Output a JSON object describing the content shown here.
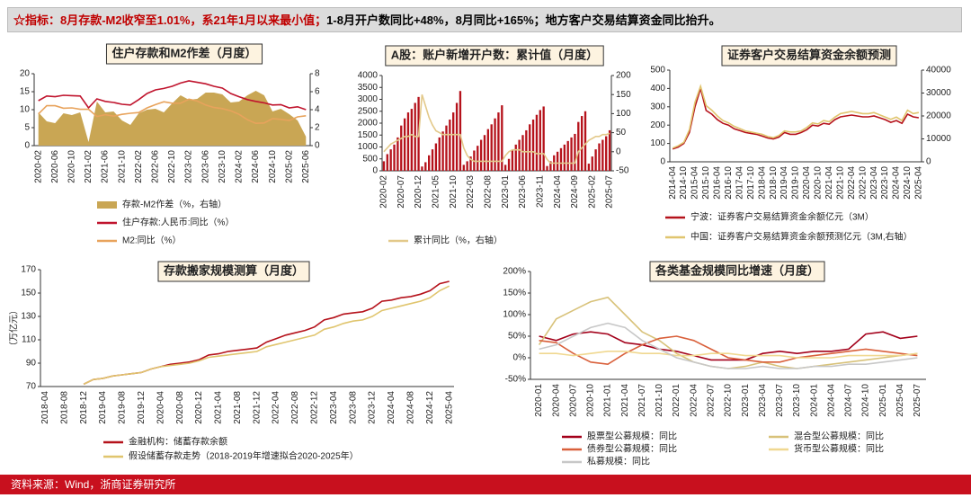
{
  "header": {
    "highlight": "☆指标：8月存款-M2收窄至1.01%，系21年1月以来最小值；",
    "rest": "1-8月开户数同比+48%，8月同比+165%；地方客户交易结算资金同比抬升。"
  },
  "footer": "资料来源：Wind，浙商证券研究所",
  "chart_data": [
    {
      "type": "combo",
      "title": "住户存款和M2作差（月度）",
      "categories": [
        "2020-02",
        null,
        "2020-06",
        null,
        "2020-10",
        null,
        "2021-02",
        null,
        "2021-06",
        null,
        "2021-10",
        null,
        "2022-02",
        null,
        "2022-06",
        null,
        "2022-10",
        null,
        "2023-02",
        null,
        "2023-06",
        null,
        "2023-10",
        null,
        "2024-02",
        null,
        "2024-06",
        null,
        "2024-10",
        null,
        "2025-02",
        null,
        "2025-06"
      ],
      "ylim": [
        0,
        20
      ],
      "yticks": [
        0,
        5,
        10,
        15,
        20
      ],
      "y2lim": [
        0,
        8
      ],
      "y2ticks": [
        0,
        2,
        4,
        6,
        8
      ],
      "series": [
        {
          "name": "存款-M2作差（%，右轴）",
          "type": "area",
          "axis": "y2",
          "color": "#c9a654",
          "values": [
            3.7,
            2.7,
            2.5,
            3.6,
            3.4,
            3.7,
            0.4,
            4.9,
            3.7,
            3.8,
            2.8,
            2.3,
            3.6,
            4,
            4.1,
            3.7,
            4.7,
            5.6,
            5.1,
            5.2,
            5.9,
            5.9,
            5.7,
            4.8,
            4.9,
            5.6,
            6.1,
            5.6,
            3.8,
            4.1,
            3.5,
            2.8,
            1.0
          ]
        },
        {
          "name": "住户存款:人民币:同比（%）",
          "type": "line",
          "color": "#c0142d",
          "values": [
            12.5,
            13.8,
            13.6,
            14,
            13.9,
            13.8,
            10.5,
            13,
            12.3,
            12,
            11.5,
            11.3,
            12.8,
            14.5,
            15.5,
            15.9,
            16.5,
            17.4,
            18,
            17.6,
            17.2,
            16.5,
            16,
            14.5,
            13.6,
            12.8,
            12.3,
            11.9,
            11.3,
            11.4,
            10.5,
            10.8,
            10
          ]
        },
        {
          "name": "M2:同比（%）",
          "type": "line",
          "color": "#e8a35c",
          "values": [
            8.8,
            11.1,
            11.1,
            10.4,
            10.5,
            10.1,
            10.1,
            8.1,
            8.6,
            8.2,
            8.7,
            9,
            9.2,
            10.5,
            11.4,
            12.2,
            11.8,
            11.8,
            12.9,
            12.4,
            11.3,
            10.6,
            10.3,
            9.7,
            8.7,
            7.2,
            6.2,
            6.3,
            7.5,
            7.3,
            7,
            8,
            8.3
          ]
        }
      ]
    },
    {
      "type": "combo",
      "title": "A股：账户新增开户数：累计值（月度）",
      "categories": [
        "2020-02",
        null,
        null,
        null,
        null,
        "2020-07",
        null,
        null,
        null,
        null,
        "2020-12",
        null,
        null,
        null,
        null,
        "2021-05",
        null,
        null,
        null,
        null,
        "2021-10",
        null,
        null,
        null,
        null,
        "2022-03",
        null,
        null,
        null,
        null,
        "2022-08",
        null,
        null,
        null,
        null,
        "2023-01",
        null,
        null,
        null,
        null,
        "2023-06",
        null,
        null,
        null,
        null,
        "2023-11",
        null,
        null,
        null,
        null,
        "2024-04",
        null,
        null,
        null,
        null,
        "2024-09",
        null,
        null,
        null,
        null,
        "2025-02",
        null,
        null,
        null,
        null,
        "2025-07"
      ],
      "ylim": [
        0,
        4000
      ],
      "yticks": [
        0,
        500,
        1000,
        1500,
        2000,
        2500,
        3000,
        3500,
        4000
      ],
      "y2lim": [
        -50,
        200
      ],
      "y2ticks": [
        -50,
        0,
        50,
        100,
        150,
        200
      ],
      "series": [
        {
          "name": "A股：账户新增开户数：累计值（月，户）",
          "type": "bar",
          "color": "#b5121b",
          "values": [
            400,
            700,
            900,
            1100,
            1400,
            1900,
            2200,
            2450,
            2600,
            2850,
            3100,
            180,
            360,
            650,
            900,
            1150,
            1400,
            1650,
            1900,
            2150,
            2450,
            2850,
            3350,
            250,
            400,
            600,
            850,
            1050,
            1300,
            1500,
            1750,
            1950,
            2200,
            2450,
            2750,
            250,
            500,
            850,
            1100,
            1300,
            1500,
            1700,
            1950,
            2150,
            2350,
            2550,
            2700,
            200,
            400,
            650,
            800,
            950,
            1100,
            1250,
            1400,
            1550,
            2050,
            2300,
            2500,
            300,
            600,
            900,
            1150,
            1300,
            1450,
            1700
          ]
        },
        {
          "name": "累计同比（%，右轴）",
          "type": "line",
          "axis": "y2",
          "color": "#e3c98a",
          "values": [
            0,
            10,
            20,
            25,
            30,
            35,
            40,
            40,
            45,
            40,
            40,
            150,
            120,
            90,
            70,
            55,
            50,
            45,
            45,
            45,
            45,
            45,
            45,
            10,
            -10,
            -20,
            -25,
            -25,
            -25,
            -25,
            -25,
            -25,
            -25,
            -25,
            -25,
            -10,
            0,
            5,
            5,
            5,
            0,
            0,
            0,
            0,
            -5,
            -5,
            -5,
            -20,
            -30,
            -30,
            -30,
            -30,
            -30,
            -30,
            -30,
            -30,
            0,
            10,
            20,
            30,
            35,
            40,
            40,
            45,
            45,
            48
          ]
        }
      ]
    },
    {
      "type": "combo",
      "title": "证券客户交易结算资金余额预测",
      "categories": [
        "2014-04",
        null,
        "2014-10",
        null,
        "2015-04",
        null,
        "2015-10",
        null,
        "2016-04",
        null,
        "2016-10",
        null,
        "2017-04",
        null,
        "2017-10",
        null,
        "2018-04",
        null,
        "2018-10",
        null,
        "2019-04",
        null,
        "2019-10",
        null,
        "2020-04",
        null,
        "2020-10",
        null,
        "2021-04",
        null,
        "2021-10",
        null,
        "2022-04",
        null,
        "2022-10",
        null,
        "2023-04",
        null,
        "2023-10",
        null,
        "2024-04",
        null,
        "2024-10",
        null,
        "2025-04"
      ],
      "ylim": [
        0,
        500
      ],
      "yticks": [
        0,
        100,
        200,
        300,
        400,
        500
      ],
      "y2lim": [
        0,
        40000
      ],
      "y2ticks": [
        0,
        10000,
        20000,
        30000,
        40000
      ],
      "series": [
        {
          "name": "宁波：证券客户交易结算资金余额亿元（3M）",
          "type": "line",
          "color": "#b5121b",
          "values": [
            70,
            80,
            100,
            160,
            300,
            400,
            280,
            260,
            230,
            210,
            200,
            180,
            170,
            160,
            155,
            150,
            140,
            130,
            125,
            135,
            160,
            150,
            150,
            160,
            175,
            200,
            195,
            210,
            205,
            230,
            245,
            250,
            255,
            250,
            245,
            245,
            250,
            240,
            230,
            215,
            225,
            210,
            260,
            245,
            240
          ]
        },
        {
          "name": "中国：证券客户交易结算资金余额预测亿元（3M,右轴）",
          "type": "line",
          "axis": "y2",
          "color": "#e0c56e",
          "values": [
            6000,
            7000,
            8500,
            14000,
            26000,
            33000,
            24500,
            22500,
            20000,
            18000,
            17000,
            15500,
            14500,
            13500,
            13000,
            12500,
            12000,
            11000,
            10500,
            11500,
            13500,
            13000,
            13000,
            13500,
            15000,
            17000,
            16500,
            18000,
            17500,
            19500,
            21000,
            21500,
            22000,
            21500,
            21000,
            21000,
            21500,
            20500,
            19500,
            18500,
            19500,
            18000,
            22500,
            21000,
            21500
          ]
        }
      ]
    },
    {
      "type": "line",
      "title": "存款搬家规模测算（月度）",
      "ylabel": "（万亿元）",
      "categories": [
        "2018-04",
        null,
        "2018-08",
        null,
        "2018-12",
        null,
        "2019-04",
        null,
        "2019-08",
        null,
        "2019-12",
        null,
        "2020-04",
        null,
        "2020-08",
        null,
        "2020-12",
        null,
        "2021-04",
        null,
        "2021-08",
        null,
        "2021-12",
        null,
        "2022-04",
        null,
        "2022-08",
        null,
        "2022-12",
        null,
        "2023-04",
        null,
        "2023-08",
        null,
        "2023-12",
        null,
        "2024-04",
        null,
        "2024-08",
        null,
        "2024-12",
        null,
        "2025-04"
      ],
      "ylim": [
        70,
        170
      ],
      "yticks": [
        70,
        90,
        110,
        130,
        150,
        170
      ],
      "series": [
        {
          "name": "金融机构：储蓄存款余额",
          "type": "line",
          "color": "#b5121b",
          "values": [
            null,
            null,
            null,
            null,
            72,
            76,
            77,
            79,
            80,
            81,
            82,
            85,
            87,
            89,
            90,
            91,
            93,
            97,
            98,
            100,
            101,
            102,
            103,
            108,
            111,
            114,
            116,
            118,
            121,
            127,
            129,
            132,
            133,
            134,
            137,
            143,
            144,
            146,
            147,
            149,
            152,
            158,
            160
          ]
        },
        {
          "name": "假设储蓄存款走势（2018-2019年增速拟合2020-2025年）",
          "type": "line",
          "color": "#e0c56e",
          "values": [
            null,
            null,
            null,
            null,
            72,
            76,
            77,
            79,
            80,
            81,
            82,
            85,
            87,
            88,
            89,
            90,
            92,
            95,
            96,
            97,
            98,
            99,
            100,
            104,
            106,
            108,
            110,
            112,
            114,
            119,
            121,
            124,
            126,
            127,
            130,
            135,
            137,
            139,
            141,
            143,
            146,
            152,
            156
          ]
        }
      ]
    },
    {
      "type": "line",
      "title": "各类基金规模同比增速（月度）",
      "categories": [
        "2020-01",
        "2020-04",
        "2020-07",
        "2020-10",
        "2021-01",
        "2021-04",
        "2021-07",
        "2021-10",
        "2022-01",
        "2022-04",
        "2022-07",
        "2022-10",
        "2023-01",
        "2023-04",
        "2023-07",
        "2023-10",
        "2024-01",
        "2024-04",
        "2024-07",
        "2024-10",
        "2025-01",
        "2025-04",
        "2025-07"
      ],
      "ylim": [
        -50,
        200
      ],
      "yticks": [
        {
          "value": -50,
          "label": "-50%"
        },
        {
          "value": 0,
          "label": "0%"
        },
        {
          "value": 50,
          "label": "50%"
        },
        {
          "value": 100,
          "label": "100%"
        },
        {
          "value": 150,
          "label": "150%"
        },
        {
          "value": 200,
          "label": "200%"
        }
      ],
      "series": [
        {
          "name": "股票型公募规模：同比",
          "type": "line",
          "color": "#a3001a",
          "values": [
            50,
            40,
            55,
            60,
            55,
            35,
            30,
            20,
            15,
            5,
            -5,
            -5,
            -5,
            10,
            15,
            10,
            15,
            15,
            20,
            55,
            60,
            45,
            50
          ]
        },
        {
          "name": "混合型公募规模：同比",
          "type": "line",
          "color": "#d8c27a",
          "values": [
            30,
            90,
            110,
            130,
            140,
            100,
            60,
            40,
            10,
            -10,
            -20,
            -25,
            -20,
            -10,
            -20,
            -25,
            -20,
            -15,
            -10,
            -5,
            0,
            5,
            10
          ]
        },
        {
          "name": "债券型公募规模：同比",
          "type": "line",
          "color": "#d9603b",
          "values": [
            40,
            35,
            10,
            -10,
            -15,
            10,
            30,
            45,
            50,
            40,
            20,
            0,
            -5,
            -10,
            -10,
            0,
            5,
            10,
            15,
            20,
            15,
            10,
            5
          ]
        },
        {
          "name": "货币型公募规模：同比",
          "type": "line",
          "color": "#f0d890",
          "values": [
            10,
            10,
            5,
            10,
            15,
            15,
            10,
            10,
            5,
            5,
            10,
            10,
            5,
            5,
            5,
            0,
            0,
            0,
            5,
            5,
            5,
            5,
            10
          ]
        },
        {
          "name": "私募规模：同比",
          "type": "line",
          "color": "#c8c8c8",
          "values": [
            20,
            30,
            50,
            70,
            80,
            70,
            40,
            20,
            0,
            -10,
            -20,
            -25,
            -25,
            -20,
            -25,
            -25,
            -20,
            -20,
            -15,
            -15,
            -10,
            -5,
            0
          ]
        }
      ]
    }
  ]
}
